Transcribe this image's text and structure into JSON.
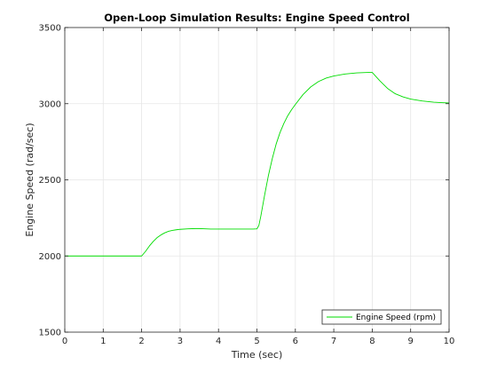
{
  "colors": {
    "background": "#ffffff",
    "axes": "#262626",
    "grid": "#e6e6e6",
    "series": "#00dd00"
  },
  "chart_data": {
    "type": "line",
    "title": "Open-Loop Simulation Results: Engine Speed Control",
    "xlabel": "Time (sec)",
    "ylabel": "Engine Speed (rad/sec)",
    "xlim": [
      0,
      10
    ],
    "ylim": [
      1500,
      3500
    ],
    "xticks": [
      0,
      1,
      2,
      3,
      4,
      5,
      6,
      7,
      8,
      9,
      10
    ],
    "yticks": [
      1500,
      2000,
      2500,
      3000,
      3500
    ],
    "grid": true,
    "box": true,
    "legend_location": "bottom-right",
    "series": [
      {
        "name": "Engine Speed (rpm)",
        "color": "#00dd00",
        "x": [
          0,
          1,
          2,
          2.1,
          2.2,
          2.3,
          2.4,
          2.5,
          2.6,
          2.7,
          2.8,
          2.9,
          3.0,
          3.2,
          3.4,
          3.5,
          3.6,
          3.8,
          4.0,
          4.5,
          4.9,
          5.0,
          5.05,
          5.1,
          5.2,
          5.3,
          5.4,
          5.5,
          5.6,
          5.7,
          5.8,
          5.9,
          6.0,
          6.2,
          6.4,
          6.6,
          6.8,
          7.0,
          7.3,
          7.6,
          7.9,
          8.0,
          8.2,
          8.4,
          8.6,
          8.8,
          9.0,
          9.3,
          9.6,
          9.8,
          10.0
        ],
        "y": [
          2000,
          2000,
          2000,
          2030,
          2065,
          2095,
          2120,
          2138,
          2152,
          2162,
          2168,
          2172,
          2175,
          2178,
          2180,
          2180,
          2179,
          2177,
          2177,
          2177,
          2177,
          2178,
          2200,
          2260,
          2400,
          2530,
          2640,
          2735,
          2810,
          2870,
          2920,
          2960,
          2995,
          3060,
          3110,
          3145,
          3168,
          3182,
          3195,
          3202,
          3205,
          3205,
          3150,
          3100,
          3065,
          3045,
          3030,
          3018,
          3010,
          3007,
          3005
        ]
      }
    ]
  }
}
